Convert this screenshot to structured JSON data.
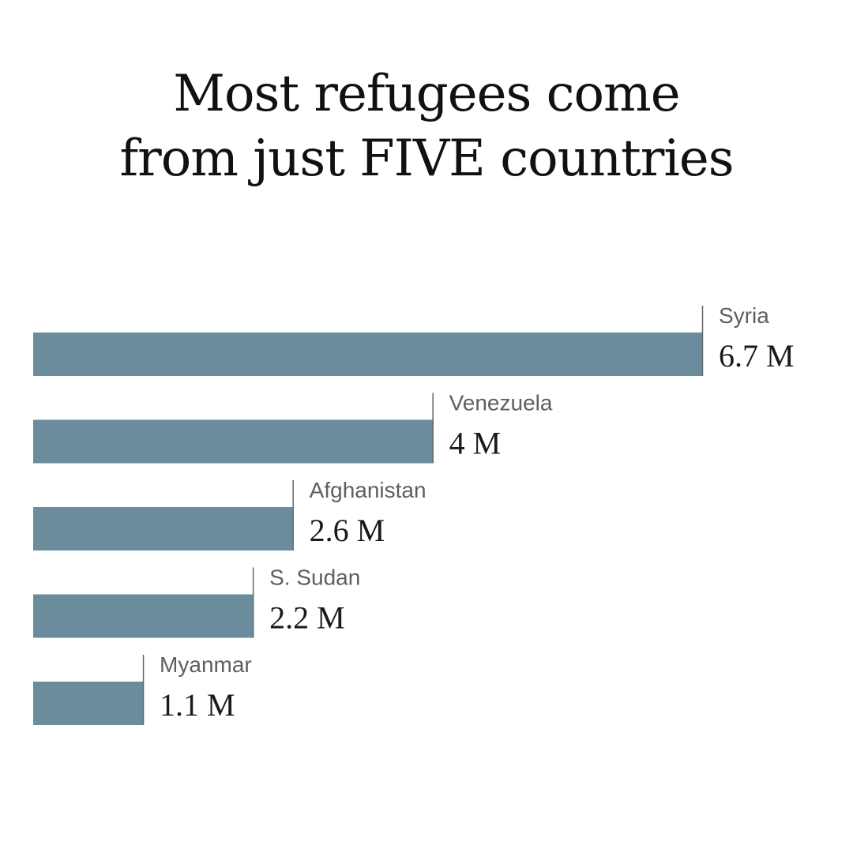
{
  "chart_data": {
    "type": "bar",
    "orientation": "horizontal",
    "title": "Most refugees come from just FIVE countries",
    "title_lines": [
      "Most refugees come",
      "from just FIVE countries"
    ],
    "categories": [
      "Syria",
      "Venezuela",
      "Afghanistan",
      "S. Sudan",
      "Myanmar"
    ],
    "values": [
      6.7,
      4.0,
      2.6,
      2.2,
      1.1
    ],
    "value_labels": [
      "6.7 M",
      "4 M",
      "2.6 M",
      "2.2 M",
      "1.1 M"
    ],
    "unit": "M",
    "xlim": [
      0,
      6.7
    ],
    "grid": false,
    "legend": "none",
    "bar_color": "#6b8c9c"
  }
}
